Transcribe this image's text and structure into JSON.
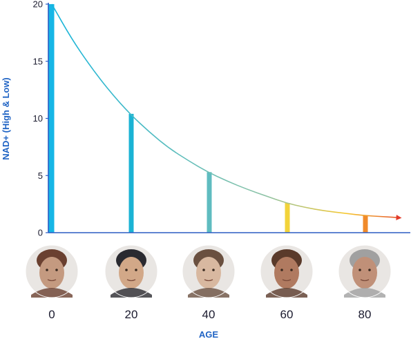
{
  "chart_data": {
    "type": "bar",
    "x": [
      0,
      20,
      40,
      60,
      80
    ],
    "values": [
      20,
      10.4,
      5.3,
      2.6,
      1.5
    ],
    "curve": {
      "x": [
        0,
        5,
        10,
        15,
        20,
        25,
        30,
        35,
        40,
        45,
        50,
        55,
        60,
        65,
        70,
        75,
        80,
        85,
        90
      ],
      "y": [
        20,
        17,
        14.5,
        12.3,
        10.4,
        8.8,
        7.4,
        6.3,
        5.3,
        4.5,
        3.8,
        3.2,
        2.6,
        2.2,
        1.9,
        1.7,
        1.5,
        1.4,
        1.3
      ]
    },
    "ylabel": "NAD+ (High & Low)",
    "xlabel": "AGE",
    "ylim": [
      0,
      20
    ],
    "xlim": [
      0,
      92
    ],
    "yticks": [
      0,
      5,
      10,
      15,
      20
    ],
    "xtick_labels": [
      "0",
      "20",
      "40",
      "60",
      "80"
    ],
    "grid": false,
    "bar_colors": [
      "#16b6e6",
      "#1bb3d4",
      "#5fbcc0",
      "#f2d33a",
      "#f08a2a"
    ],
    "axis_color": "#2a5cc4",
    "curve_gradient": [
      "#14b4dc",
      "#8ec3a6",
      "#f6c830",
      "#e23a2a"
    ],
    "faces": [
      {
        "name": "baby-face-icon",
        "tone": "#c49a80",
        "dark": "#6a4030"
      },
      {
        "name": "young-man-face-icon",
        "tone": "#d2a888",
        "dark": "#2a2a30"
      },
      {
        "name": "adult-man-face-icon",
        "tone": "#d8b8a0",
        "dark": "#6a5040"
      },
      {
        "name": "older-man-face-icon",
        "tone": "#b07a60",
        "dark": "#5a3a2a"
      },
      {
        "name": "elderly-man-face-icon",
        "tone": "#c09078",
        "dark": "#a0a0a0"
      }
    ]
  }
}
